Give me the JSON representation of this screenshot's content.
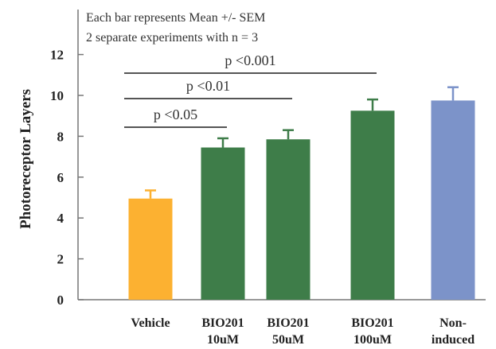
{
  "chart_data": {
    "type": "bar",
    "ylabel": "Photoreceptor Layers",
    "ylim": [
      0,
      13.6
    ],
    "yticks": [
      0,
      2,
      4,
      6,
      8,
      10,
      12
    ],
    "categories": [
      {
        "line1": "Vehicle",
        "line2": ""
      },
      {
        "line1": "BIO201",
        "line2": "10uM"
      },
      {
        "line1": "BIO201",
        "line2": "50uM"
      },
      {
        "line1": "BIO201",
        "line2": "100uM"
      },
      {
        "line1": "Non-",
        "line2": "induced"
      }
    ],
    "values": [
      4.95,
      7.45,
      7.85,
      9.25,
      9.75
    ],
    "errors": [
      0.4,
      0.45,
      0.45,
      0.55,
      0.65
    ],
    "colors": [
      "#FCB131",
      "#3E7D49",
      "#3E7D49",
      "#3E7D49",
      "#7C93C9"
    ],
    "annotations": [
      "Each bar represents Mean +/- SEM",
      "2 separate experiments with n = 3"
    ],
    "comparisons": [
      {
        "label": "p <0.05",
        "from": 0,
        "to": 1
      },
      {
        "label": "p <0.01",
        "from": 0,
        "to": 2
      },
      {
        "label": "p <0.001",
        "from": 0,
        "to": 3
      }
    ]
  }
}
